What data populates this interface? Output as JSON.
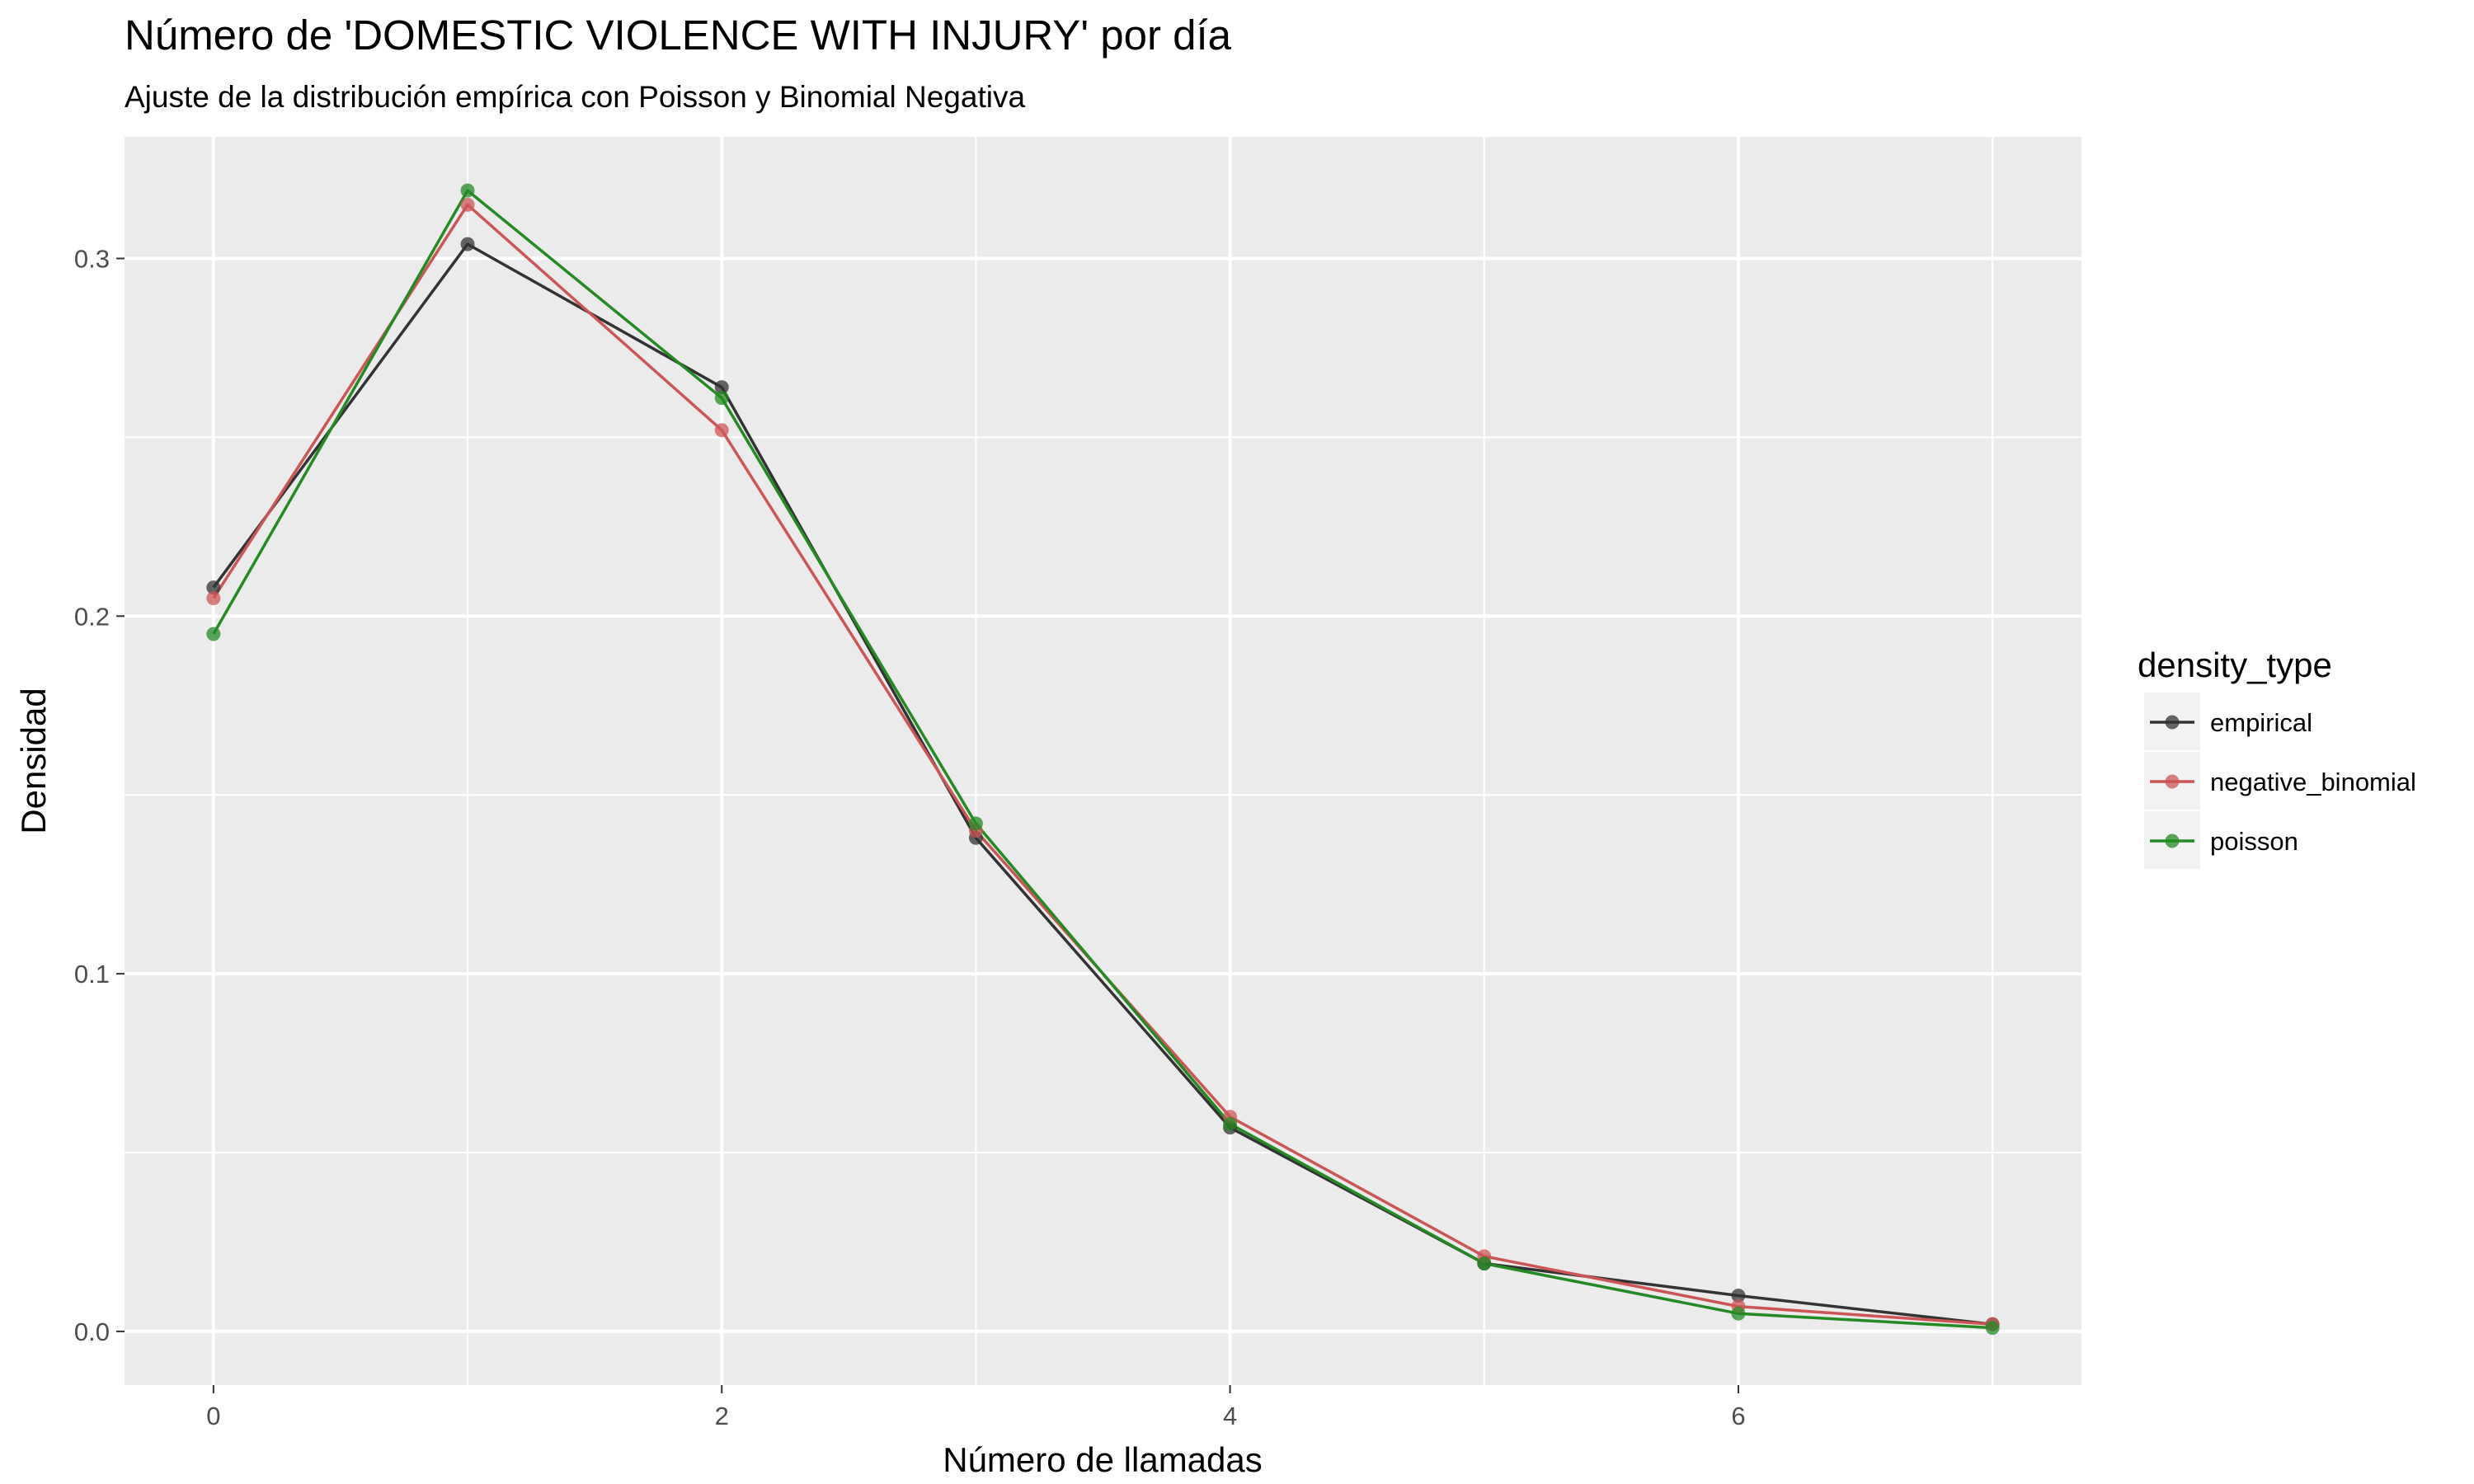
{
  "chart_data": {
    "type": "line",
    "title": "Número de 'DOMESTIC VIOLENCE WITH INJURY' por día",
    "subtitle": "Ajuste de la distribución empírica con Poisson y Binomial Negativa",
    "xlabel": "Número de llamadas",
    "ylabel": "Densidad",
    "xlim": [
      -0.35,
      7.35
    ],
    "ylim": [
      -0.015,
      0.334
    ],
    "x_ticks": [
      0,
      2,
      4,
      6
    ],
    "x_tick_labels": [
      "0",
      "2",
      "4",
      "6"
    ],
    "y_ticks": [
      0.0,
      0.1,
      0.2,
      0.3
    ],
    "y_tick_labels": [
      "0.0",
      "0.1",
      "0.2",
      "0.3"
    ],
    "grid": true,
    "legend": {
      "title": "density_type",
      "position": "right"
    },
    "x": [
      0,
      1,
      2,
      3,
      4,
      5,
      6,
      7
    ],
    "series": [
      {
        "name": "empirical",
        "color": "#333333",
        "values": [
          0.208,
          0.304,
          0.264,
          0.138,
          0.057,
          0.019,
          0.01,
          0.002
        ]
      },
      {
        "name": "negative_binomial",
        "color": "#cd5555",
        "values": [
          0.205,
          0.315,
          0.252,
          0.14,
          0.06,
          0.021,
          0.007,
          0.002
        ]
      },
      {
        "name": "poisson",
        "color": "#228b22",
        "values": [
          0.195,
          0.319,
          0.261,
          0.142,
          0.058,
          0.019,
          0.005,
          0.001
        ]
      }
    ]
  }
}
